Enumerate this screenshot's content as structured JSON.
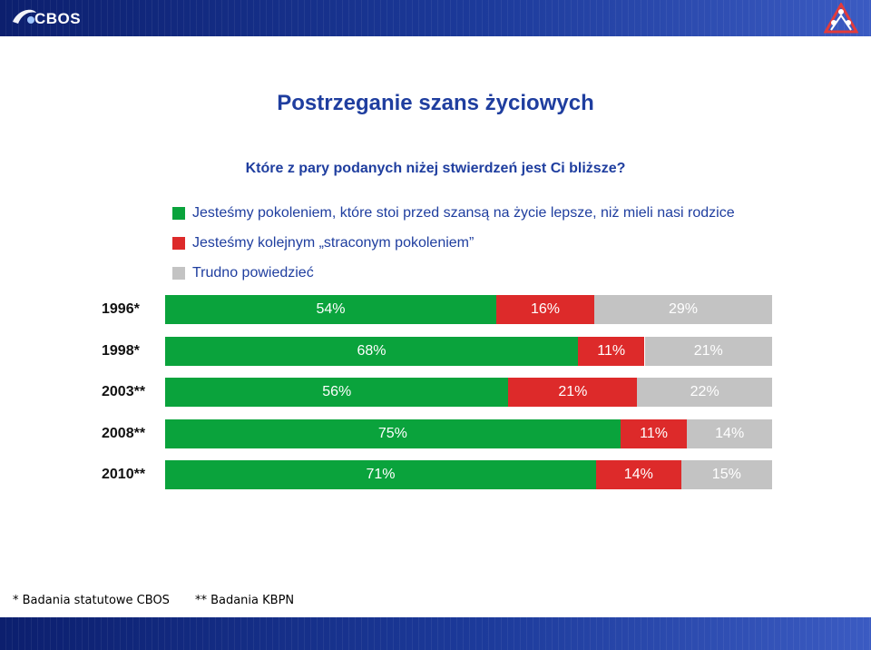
{
  "header": {
    "logo_text": "CBOS",
    "brand_color": "#1c3a9a"
  },
  "title": "Postrzeganie szans życiowych",
  "question": "Które z pary podanych niżej stwierdzeń jest Ci bliższe?",
  "chart_data": {
    "type": "bar",
    "orientation": "horizontal",
    "stacked": true,
    "percent": true,
    "categories": [
      "1996*",
      "1998*",
      "2003**",
      "2008**",
      "2010**"
    ],
    "series": [
      {
        "name": "Jesteśmy pokoleniem, które stoi przed szansą na życie lepsze, niż mieli nasi rodzice",
        "color": "#0aa33c",
        "values": [
          54,
          68,
          56,
          75,
          71
        ]
      },
      {
        "name": "Jesteśmy kolejnym „straconym pokoleniem”",
        "color": "#dd2a2a",
        "values": [
          16,
          11,
          21,
          11,
          14
        ]
      },
      {
        "name": "Trudno powiedzieć",
        "color": "#c3c3c3",
        "values": [
          29,
          21,
          22,
          14,
          15
        ]
      }
    ],
    "legend_position": "top-left",
    "grid": false
  },
  "footnotes": {
    "note1": "* Badania statutowe CBOS",
    "note2": "** Badania KBPN"
  }
}
